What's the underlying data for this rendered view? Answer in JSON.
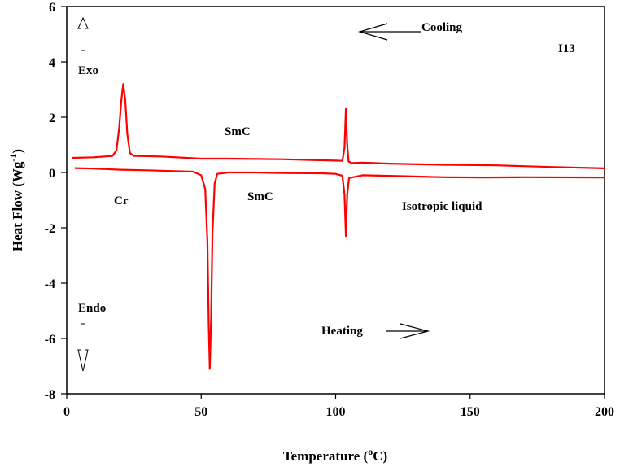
{
  "chart_data": {
    "type": "line",
    "title": "",
    "xlabel": {
      "main": "Temperature (",
      "sup": "o",
      "tail": "C)"
    },
    "ylabel": {
      "main": "Heat Flow (Wg",
      "sup": "-1",
      "tail": ")"
    },
    "xlim": [
      0,
      200
    ],
    "ylim": [
      -8,
      6
    ],
    "xticks": [
      0,
      50,
      100,
      150,
      200
    ],
    "yticks": [
      -8,
      -6,
      -4,
      -2,
      0,
      2,
      4,
      6
    ],
    "grid": false,
    "legend": "none",
    "line_color": "#ff0000",
    "series": [
      {
        "key": "cooling",
        "points": [
          [
            2,
            0.53
          ],
          [
            10,
            0.55
          ],
          [
            17,
            0.6
          ],
          [
            18.5,
            0.8
          ],
          [
            19.5,
            1.6
          ],
          [
            20.3,
            2.6
          ],
          [
            21,
            3.2
          ],
          [
            21.8,
            2.6
          ],
          [
            22.5,
            1.4
          ],
          [
            23.5,
            0.7
          ],
          [
            25,
            0.6
          ],
          [
            35,
            0.58
          ],
          [
            50,
            0.5
          ],
          [
            60,
            0.5
          ],
          [
            80,
            0.48
          ],
          [
            100,
            0.43
          ],
          [
            102.5,
            0.42
          ],
          [
            103.3,
            0.9
          ],
          [
            103.8,
            2.3
          ],
          [
            104.3,
            1.0
          ],
          [
            104.8,
            0.4
          ],
          [
            106,
            0.34
          ],
          [
            110,
            0.36
          ],
          [
            120,
            0.32
          ],
          [
            140,
            0.28
          ],
          [
            160,
            0.26
          ],
          [
            180,
            0.2
          ],
          [
            200,
            0.15
          ]
        ]
      },
      {
        "key": "heating",
        "points": [
          [
            3,
            0.16
          ],
          [
            10,
            0.14
          ],
          [
            20,
            0.1
          ],
          [
            30,
            0.08
          ],
          [
            40,
            0.05
          ],
          [
            47,
            0.03
          ],
          [
            50,
            -0.1
          ],
          [
            51.5,
            -0.6
          ],
          [
            52.3,
            -2.5
          ],
          [
            52.8,
            -5.5
          ],
          [
            53.2,
            -7.1
          ],
          [
            53.7,
            -5.2
          ],
          [
            54.2,
            -2.2
          ],
          [
            55,
            -0.4
          ],
          [
            56,
            -0.05
          ],
          [
            60,
            0.0
          ],
          [
            70,
            0.0
          ],
          [
            80,
            -0.02
          ],
          [
            95,
            -0.03
          ],
          [
            100,
            -0.05
          ],
          [
            102.5,
            -0.12
          ],
          [
            103.3,
            -0.8
          ],
          [
            103.8,
            -2.3
          ],
          [
            104.3,
            -0.8
          ],
          [
            105,
            -0.2
          ],
          [
            110,
            -0.1
          ],
          [
            120,
            -0.12
          ],
          [
            140,
            -0.17
          ],
          [
            155,
            -0.18
          ],
          [
            170,
            -0.17
          ],
          [
            200,
            -0.18
          ]
        ]
      }
    ],
    "annotations": {
      "exo": "Exo",
      "endo": "Endo",
      "cooling": "Cooling",
      "heating": "Heating",
      "sample": "I13",
      "smc_top": "SmC",
      "smc_bottom": "SmC",
      "cr": "Cr",
      "isotropic": "Isotropic liquid"
    }
  }
}
